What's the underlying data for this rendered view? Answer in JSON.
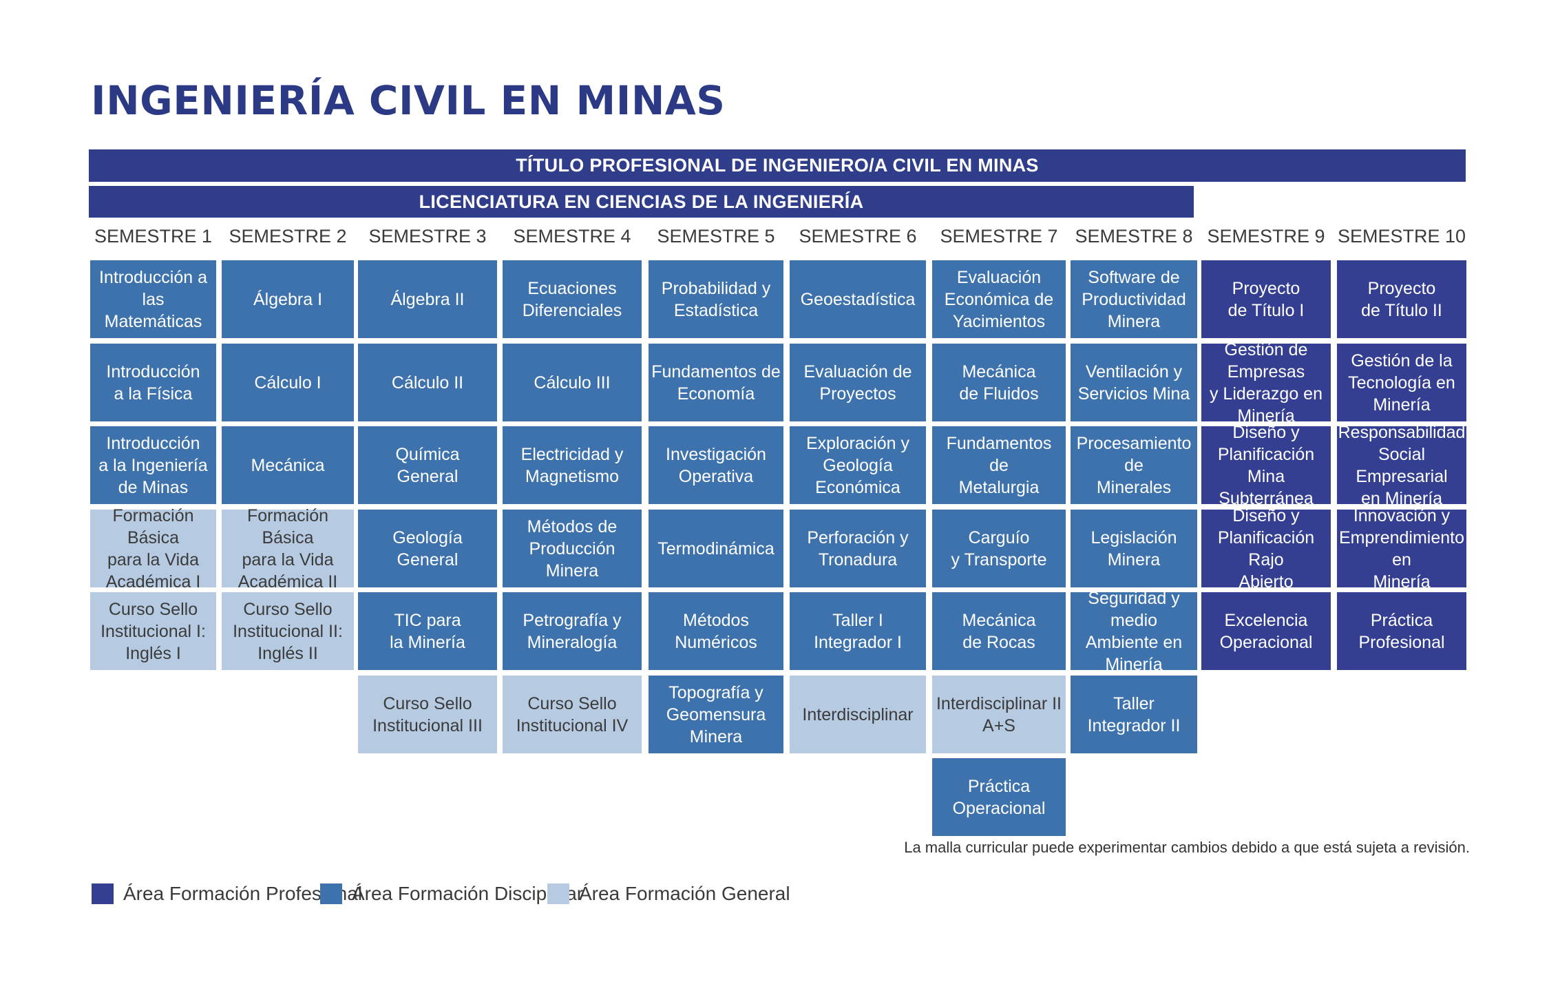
{
  "title": "INGENIERÍA CIVIL EN MINAS",
  "degree_bar": "TÍTULO PROFESIONAL DE INGENIERO/A CIVIL EN MINAS",
  "license_bar": "LICENCIATURA EN CIENCIAS DE LA INGENIERÍA",
  "colors": {
    "profesional": "#343f91",
    "disciplinar": "#3d72ad",
    "general": "#b6cbe2"
  },
  "semesters": [
    {
      "label": "SEMESTRE 1",
      "courses": [
        {
          "name": "Introducción a las\nMatemáticas",
          "area": "disc"
        },
        {
          "name": "Introducción\na la Física",
          "area": "disc"
        },
        {
          "name": "Introducción\na la Ingeniería\nde Minas",
          "area": "disc"
        },
        {
          "name": "Formación Básica\npara la Vida\nAcadémica I",
          "area": "gen"
        },
        {
          "name": "Curso Sello\nInstitucional I:\nInglés I",
          "area": "gen"
        }
      ]
    },
    {
      "label": "SEMESTRE 2",
      "courses": [
        {
          "name": "Álgebra I",
          "area": "disc"
        },
        {
          "name": "Cálculo I",
          "area": "disc"
        },
        {
          "name": "Mecánica",
          "area": "disc"
        },
        {
          "name": "Formación Básica\npara la Vida\nAcadémica II",
          "area": "gen"
        },
        {
          "name": "Curso Sello\nInstitucional II:\nInglés II",
          "area": "gen"
        }
      ]
    },
    {
      "label": "SEMESTRE 3",
      "courses": [
        {
          "name": "Álgebra II",
          "area": "disc"
        },
        {
          "name": "Cálculo II",
          "area": "disc"
        },
        {
          "name": "Química\nGeneral",
          "area": "disc"
        },
        {
          "name": "Geología\nGeneral",
          "area": "disc"
        },
        {
          "name": "TIC para\nla Minería",
          "area": "disc"
        },
        {
          "name": "Curso Sello\nInstitucional III",
          "area": "gen"
        }
      ]
    },
    {
      "label": "SEMESTRE 4",
      "courses": [
        {
          "name": "Ecuaciones\nDiferenciales",
          "area": "disc"
        },
        {
          "name": "Cálculo III",
          "area": "disc"
        },
        {
          "name": "Electricidad y\nMagnetismo",
          "area": "disc"
        },
        {
          "name": "Métodos de\nProducción Minera",
          "area": "disc"
        },
        {
          "name": "Petrografía y\nMineralogía",
          "area": "disc"
        },
        {
          "name": "Curso Sello\nInstitucional IV",
          "area": "gen"
        }
      ]
    },
    {
      "label": "SEMESTRE 5",
      "courses": [
        {
          "name": "Probabilidad y\nEstadística",
          "area": "disc"
        },
        {
          "name": "Fundamentos de\nEconomía",
          "area": "disc"
        },
        {
          "name": "Investigación\nOperativa",
          "area": "disc"
        },
        {
          "name": "Termodinámica",
          "area": "disc"
        },
        {
          "name": "Métodos\nNuméricos",
          "area": "disc"
        },
        {
          "name": "Topografía y\nGeomensura Minera",
          "area": "disc"
        }
      ]
    },
    {
      "label": "SEMESTRE 6",
      "courses": [
        {
          "name": "Geoestadística",
          "area": "disc"
        },
        {
          "name": "Evaluación de\nProyectos",
          "area": "disc"
        },
        {
          "name": "Exploración y\nGeología Económica",
          "area": "disc"
        },
        {
          "name": "Perforación y\nTronadura",
          "area": "disc"
        },
        {
          "name": "Taller I\nIntegrador I",
          "area": "disc"
        },
        {
          "name": "Interdisciplinar",
          "area": "gen"
        }
      ]
    },
    {
      "label": "SEMESTRE 7",
      "courses": [
        {
          "name": "Evaluación\nEconómica de\nYacimientos",
          "area": "disc"
        },
        {
          "name": "Mecánica\nde Fluidos",
          "area": "disc"
        },
        {
          "name": "Fundamentos de\nMetalurgia",
          "area": "disc"
        },
        {
          "name": "Carguío\ny Transporte",
          "area": "disc"
        },
        {
          "name": "Mecánica\nde Rocas",
          "area": "disc"
        },
        {
          "name": "Interdisciplinar II\nA+S",
          "area": "gen"
        },
        {
          "name": "Práctica\nOperacional",
          "area": "disc"
        }
      ]
    },
    {
      "label": "SEMESTRE 8",
      "courses": [
        {
          "name": "Software de\nProductividad\nMinera",
          "area": "disc"
        },
        {
          "name": "Ventilación y\nServicios Mina",
          "area": "disc"
        },
        {
          "name": "Procesamiento de\nMinerales",
          "area": "disc"
        },
        {
          "name": "Legislación\nMinera",
          "area": "disc"
        },
        {
          "name": "Seguridad y medio\nAmbiente en Minería",
          "area": "disc"
        },
        {
          "name": "Taller\nIntegrador II",
          "area": "disc"
        }
      ]
    },
    {
      "label": "SEMESTRE 9",
      "courses": [
        {
          "name": "Proyecto\nde Título I",
          "area": "prof"
        },
        {
          "name": "Gestión de Empresas\ny Liderazgo en\nMinería",
          "area": "prof"
        },
        {
          "name": "Diseño y\nPlanificación Mina\nSubterránea",
          "area": "prof"
        },
        {
          "name": "Diseño y\nPlanificación Rajo\nAbierto",
          "area": "prof"
        },
        {
          "name": "Excelencia\nOperacional",
          "area": "prof"
        }
      ]
    },
    {
      "label": "SEMESTRE 10",
      "courses": [
        {
          "name": "Proyecto\nde Título II",
          "area": "prof"
        },
        {
          "name": "Gestión de la\nTecnología en\nMinería",
          "area": "prof"
        },
        {
          "name": "Responsabilidad\nSocial Empresarial\nen Minería",
          "area": "prof"
        },
        {
          "name": "Innovación y\nEmprendimiento en\nMinería",
          "area": "prof"
        },
        {
          "name": "Práctica\nProfesional",
          "area": "prof"
        }
      ]
    }
  ],
  "note": "La malla curricular puede experimentar cambios debido a que está sujeta a revisión.",
  "legend": [
    {
      "label": "Área Formación Profesional",
      "area": "prof"
    },
    {
      "label": "Área Formación Disciplinar",
      "area": "disc"
    },
    {
      "label": "Área Formación General",
      "area": "gen"
    }
  ]
}
